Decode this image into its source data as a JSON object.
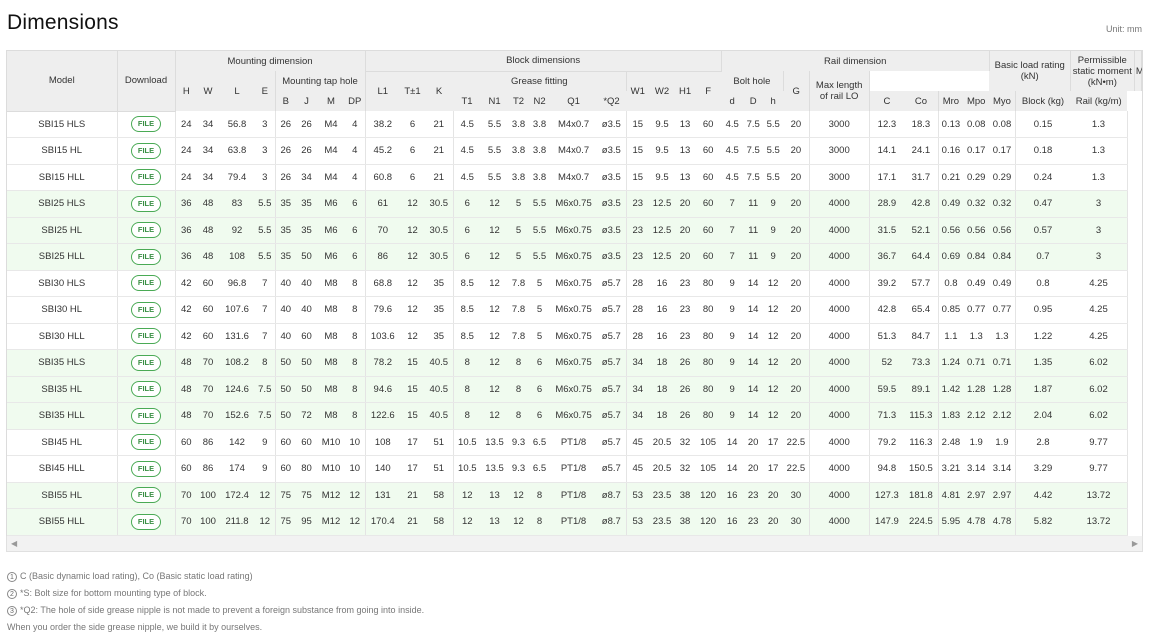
{
  "page": {
    "title": "Dimensions",
    "unit": "Unit: mm"
  },
  "header": {
    "model": "Model",
    "download": "Download",
    "mounting_dimension": "Mounting dimension",
    "block_dimensions": "Block dimensions",
    "rail_dimension": "Rail dimension",
    "basic_load_rating": "Basic load rating (kN)",
    "permissible_static_moment": "Permissible static moment (kN•m)",
    "mass": "Mass",
    "mounting_tap_hole": "Mounting tap hole",
    "grease_fitting": "Grease fitting",
    "bolt_hole": "Bolt hole",
    "max_length": "Max length of rail LO",
    "H": "H",
    "W": "W",
    "L": "L",
    "E": "E",
    "B": "B",
    "J": "J",
    "M": "M",
    "DP": "DP",
    "L1": "L1",
    "T": "T±1",
    "K": "K",
    "T1": "T1",
    "N1": "N1",
    "T2": "T2",
    "N2": "N2",
    "Q1": "Q1",
    "Q2": "*Q2",
    "W1": "W1",
    "W2": "W2",
    "H1": "H1",
    "F": "F",
    "d": "d",
    "D": "D",
    "h": "h",
    "G": "G",
    "C": "C",
    "Co": "Co",
    "Mro": "Mro",
    "Mpo": "Mpo",
    "Myo": "Myo",
    "block_kg": "Block (kg)",
    "rail_kgm": "Rail (kg/m)"
  },
  "file_label": "FILE",
  "rows": [
    [
      "SBI15 HLS",
      "24",
      "34",
      "56.8",
      "3",
      "26",
      "26",
      "M4",
      "4",
      "38.2",
      "6",
      "21",
      "4.5",
      "5.5",
      "3.8",
      "3.8",
      "M4x0.7",
      "ø3.5",
      "15",
      "9.5",
      "13",
      "60",
      "4.5",
      "7.5",
      "5.5",
      "20",
      "3000",
      "12.3",
      "18.3",
      "0.13",
      "0.08",
      "0.08",
      "0.15",
      "1.3"
    ],
    [
      "SBI15 HL",
      "24",
      "34",
      "63.8",
      "3",
      "26",
      "26",
      "M4",
      "4",
      "45.2",
      "6",
      "21",
      "4.5",
      "5.5",
      "3.8",
      "3.8",
      "M4x0.7",
      "ø3.5",
      "15",
      "9.5",
      "13",
      "60",
      "4.5",
      "7.5",
      "5.5",
      "20",
      "3000",
      "14.1",
      "24.1",
      "0.16",
      "0.17",
      "0.17",
      "0.18",
      "1.3"
    ],
    [
      "SBI15 HLL",
      "24",
      "34",
      "79.4",
      "3",
      "26",
      "34",
      "M4",
      "4",
      "60.8",
      "6",
      "21",
      "4.5",
      "5.5",
      "3.8",
      "3.8",
      "M4x0.7",
      "ø3.5",
      "15",
      "9.5",
      "13",
      "60",
      "4.5",
      "7.5",
      "5.5",
      "20",
      "3000",
      "17.1",
      "31.7",
      "0.21",
      "0.29",
      "0.29",
      "0.24",
      "1.3"
    ],
    [
      "SBI25 HLS",
      "36",
      "48",
      "83",
      "5.5",
      "35",
      "35",
      "M6",
      "6",
      "61",
      "12",
      "30.5",
      "6",
      "12",
      "5",
      "5.5",
      "M6x0.75",
      "ø3.5",
      "23",
      "12.5",
      "20",
      "60",
      "7",
      "11",
      "9",
      "20",
      "4000",
      "28.9",
      "42.8",
      "0.49",
      "0.32",
      "0.32",
      "0.47",
      "3"
    ],
    [
      "SBI25 HL",
      "36",
      "48",
      "92",
      "5.5",
      "35",
      "35",
      "M6",
      "6",
      "70",
      "12",
      "30.5",
      "6",
      "12",
      "5",
      "5.5",
      "M6x0.75",
      "ø3.5",
      "23",
      "12.5",
      "20",
      "60",
      "7",
      "11",
      "9",
      "20",
      "4000",
      "31.5",
      "52.1",
      "0.56",
      "0.56",
      "0.56",
      "0.57",
      "3"
    ],
    [
      "SBI25 HLL",
      "36",
      "48",
      "108",
      "5.5",
      "35",
      "50",
      "M6",
      "6",
      "86",
      "12",
      "30.5",
      "6",
      "12",
      "5",
      "5.5",
      "M6x0.75",
      "ø3.5",
      "23",
      "12.5",
      "20",
      "60",
      "7",
      "11",
      "9",
      "20",
      "4000",
      "36.7",
      "64.4",
      "0.69",
      "0.84",
      "0.84",
      "0.7",
      "3"
    ],
    [
      "SBI30 HLS",
      "42",
      "60",
      "96.8",
      "7",
      "40",
      "40",
      "M8",
      "8",
      "68.8",
      "12",
      "35",
      "8.5",
      "12",
      "7.8",
      "5",
      "M6x0.75",
      "ø5.7",
      "28",
      "16",
      "23",
      "80",
      "9",
      "14",
      "12",
      "20",
      "4000",
      "39.2",
      "57.7",
      "0.8",
      "0.49",
      "0.49",
      "0.8",
      "4.25"
    ],
    [
      "SBI30 HL",
      "42",
      "60",
      "107.6",
      "7",
      "40",
      "40",
      "M8",
      "8",
      "79.6",
      "12",
      "35",
      "8.5",
      "12",
      "7.8",
      "5",
      "M6x0.75",
      "ø5.7",
      "28",
      "16",
      "23",
      "80",
      "9",
      "14",
      "12",
      "20",
      "4000",
      "42.8",
      "65.4",
      "0.85",
      "0.77",
      "0.77",
      "0.95",
      "4.25"
    ],
    [
      "SBI30 HLL",
      "42",
      "60",
      "131.6",
      "7",
      "40",
      "60",
      "M8",
      "8",
      "103.6",
      "12",
      "35",
      "8.5",
      "12",
      "7.8",
      "5",
      "M6x0.75",
      "ø5.7",
      "28",
      "16",
      "23",
      "80",
      "9",
      "14",
      "12",
      "20",
      "4000",
      "51.3",
      "84.7",
      "1.1",
      "1.3",
      "1.3",
      "1.22",
      "4.25"
    ],
    [
      "SBI35 HLS",
      "48",
      "70",
      "108.2",
      "8",
      "50",
      "50",
      "M8",
      "8",
      "78.2",
      "15",
      "40.5",
      "8",
      "12",
      "8",
      "6",
      "M6x0.75",
      "ø5.7",
      "34",
      "18",
      "26",
      "80",
      "9",
      "14",
      "12",
      "20",
      "4000",
      "52",
      "73.3",
      "1.24",
      "0.71",
      "0.71",
      "1.35",
      "6.02"
    ],
    [
      "SBI35 HL",
      "48",
      "70",
      "124.6",
      "7.5",
      "50",
      "50",
      "M8",
      "8",
      "94.6",
      "15",
      "40.5",
      "8",
      "12",
      "8",
      "6",
      "M6x0.75",
      "ø5.7",
      "34",
      "18",
      "26",
      "80",
      "9",
      "14",
      "12",
      "20",
      "4000",
      "59.5",
      "89.1",
      "1.42",
      "1.28",
      "1.28",
      "1.87",
      "6.02"
    ],
    [
      "SBI35 HLL",
      "48",
      "70",
      "152.6",
      "7.5",
      "50",
      "72",
      "M8",
      "8",
      "122.6",
      "15",
      "40.5",
      "8",
      "12",
      "8",
      "6",
      "M6x0.75",
      "ø5.7",
      "34",
      "18",
      "26",
      "80",
      "9",
      "14",
      "12",
      "20",
      "4000",
      "71.3",
      "115.3",
      "1.83",
      "2.12",
      "2.12",
      "2.04",
      "6.02"
    ],
    [
      "SBI45 HL",
      "60",
      "86",
      "142",
      "9",
      "60",
      "60",
      "M10",
      "10",
      "108",
      "17",
      "51",
      "10.5",
      "13.5",
      "9.3",
      "6.5",
      "PT1/8",
      "ø5.7",
      "45",
      "20.5",
      "32",
      "105",
      "14",
      "20",
      "17",
      "22.5",
      "4000",
      "79.2",
      "116.3",
      "2.48",
      "1.9",
      "1.9",
      "2.8",
      "9.77"
    ],
    [
      "SBI45 HLL",
      "60",
      "86",
      "174",
      "9",
      "60",
      "80",
      "M10",
      "10",
      "140",
      "17",
      "51",
      "10.5",
      "13.5",
      "9.3",
      "6.5",
      "PT1/8",
      "ø5.7",
      "45",
      "20.5",
      "32",
      "105",
      "14",
      "20",
      "17",
      "22.5",
      "4000",
      "94.8",
      "150.5",
      "3.21",
      "3.14",
      "3.14",
      "3.29",
      "9.77"
    ],
    [
      "SBI55 HL",
      "70",
      "100",
      "172.4",
      "12",
      "75",
      "75",
      "M12",
      "12",
      "131",
      "21",
      "58",
      "12",
      "13",
      "12",
      "8",
      "PT1/8",
      "ø8.7",
      "53",
      "23.5",
      "38",
      "120",
      "16",
      "23",
      "20",
      "30",
      "4000",
      "127.3",
      "181.8",
      "4.81",
      "2.97",
      "2.97",
      "4.42",
      "13.72"
    ],
    [
      "SBI55 HLL",
      "70",
      "100",
      "211.8",
      "12",
      "75",
      "95",
      "M12",
      "12",
      "170.4",
      "21",
      "58",
      "12",
      "13",
      "12",
      "8",
      "PT1/8",
      "ø8.7",
      "53",
      "23.5",
      "38",
      "120",
      "16",
      "23",
      "20",
      "30",
      "4000",
      "147.9",
      "224.5",
      "5.95",
      "4.78",
      "4.78",
      "5.82",
      "13.72"
    ]
  ],
  "row_groups": [
    "w",
    "w",
    "w",
    "g",
    "g",
    "g",
    "w",
    "w",
    "w",
    "g",
    "g",
    "g",
    "w",
    "w",
    "g",
    "g"
  ],
  "notes": [
    {
      "num": "1",
      "text": "C (Basic dynamic load rating), Co (Basic static load rating)"
    },
    {
      "num": "2",
      "text": "*S: Bolt size for bottom mounting type of block."
    },
    {
      "num": "3",
      "text": "*Q2: The hole of side grease nipple is not made to prevent a foreign substance from going into inside."
    },
    {
      "num": "",
      "text": "When you order the side grease nipple, we build it by ourselves."
    }
  ],
  "icons": {
    "scroll_left": "triangle-left-icon",
    "scroll_right": "triangle-right-icon"
  }
}
